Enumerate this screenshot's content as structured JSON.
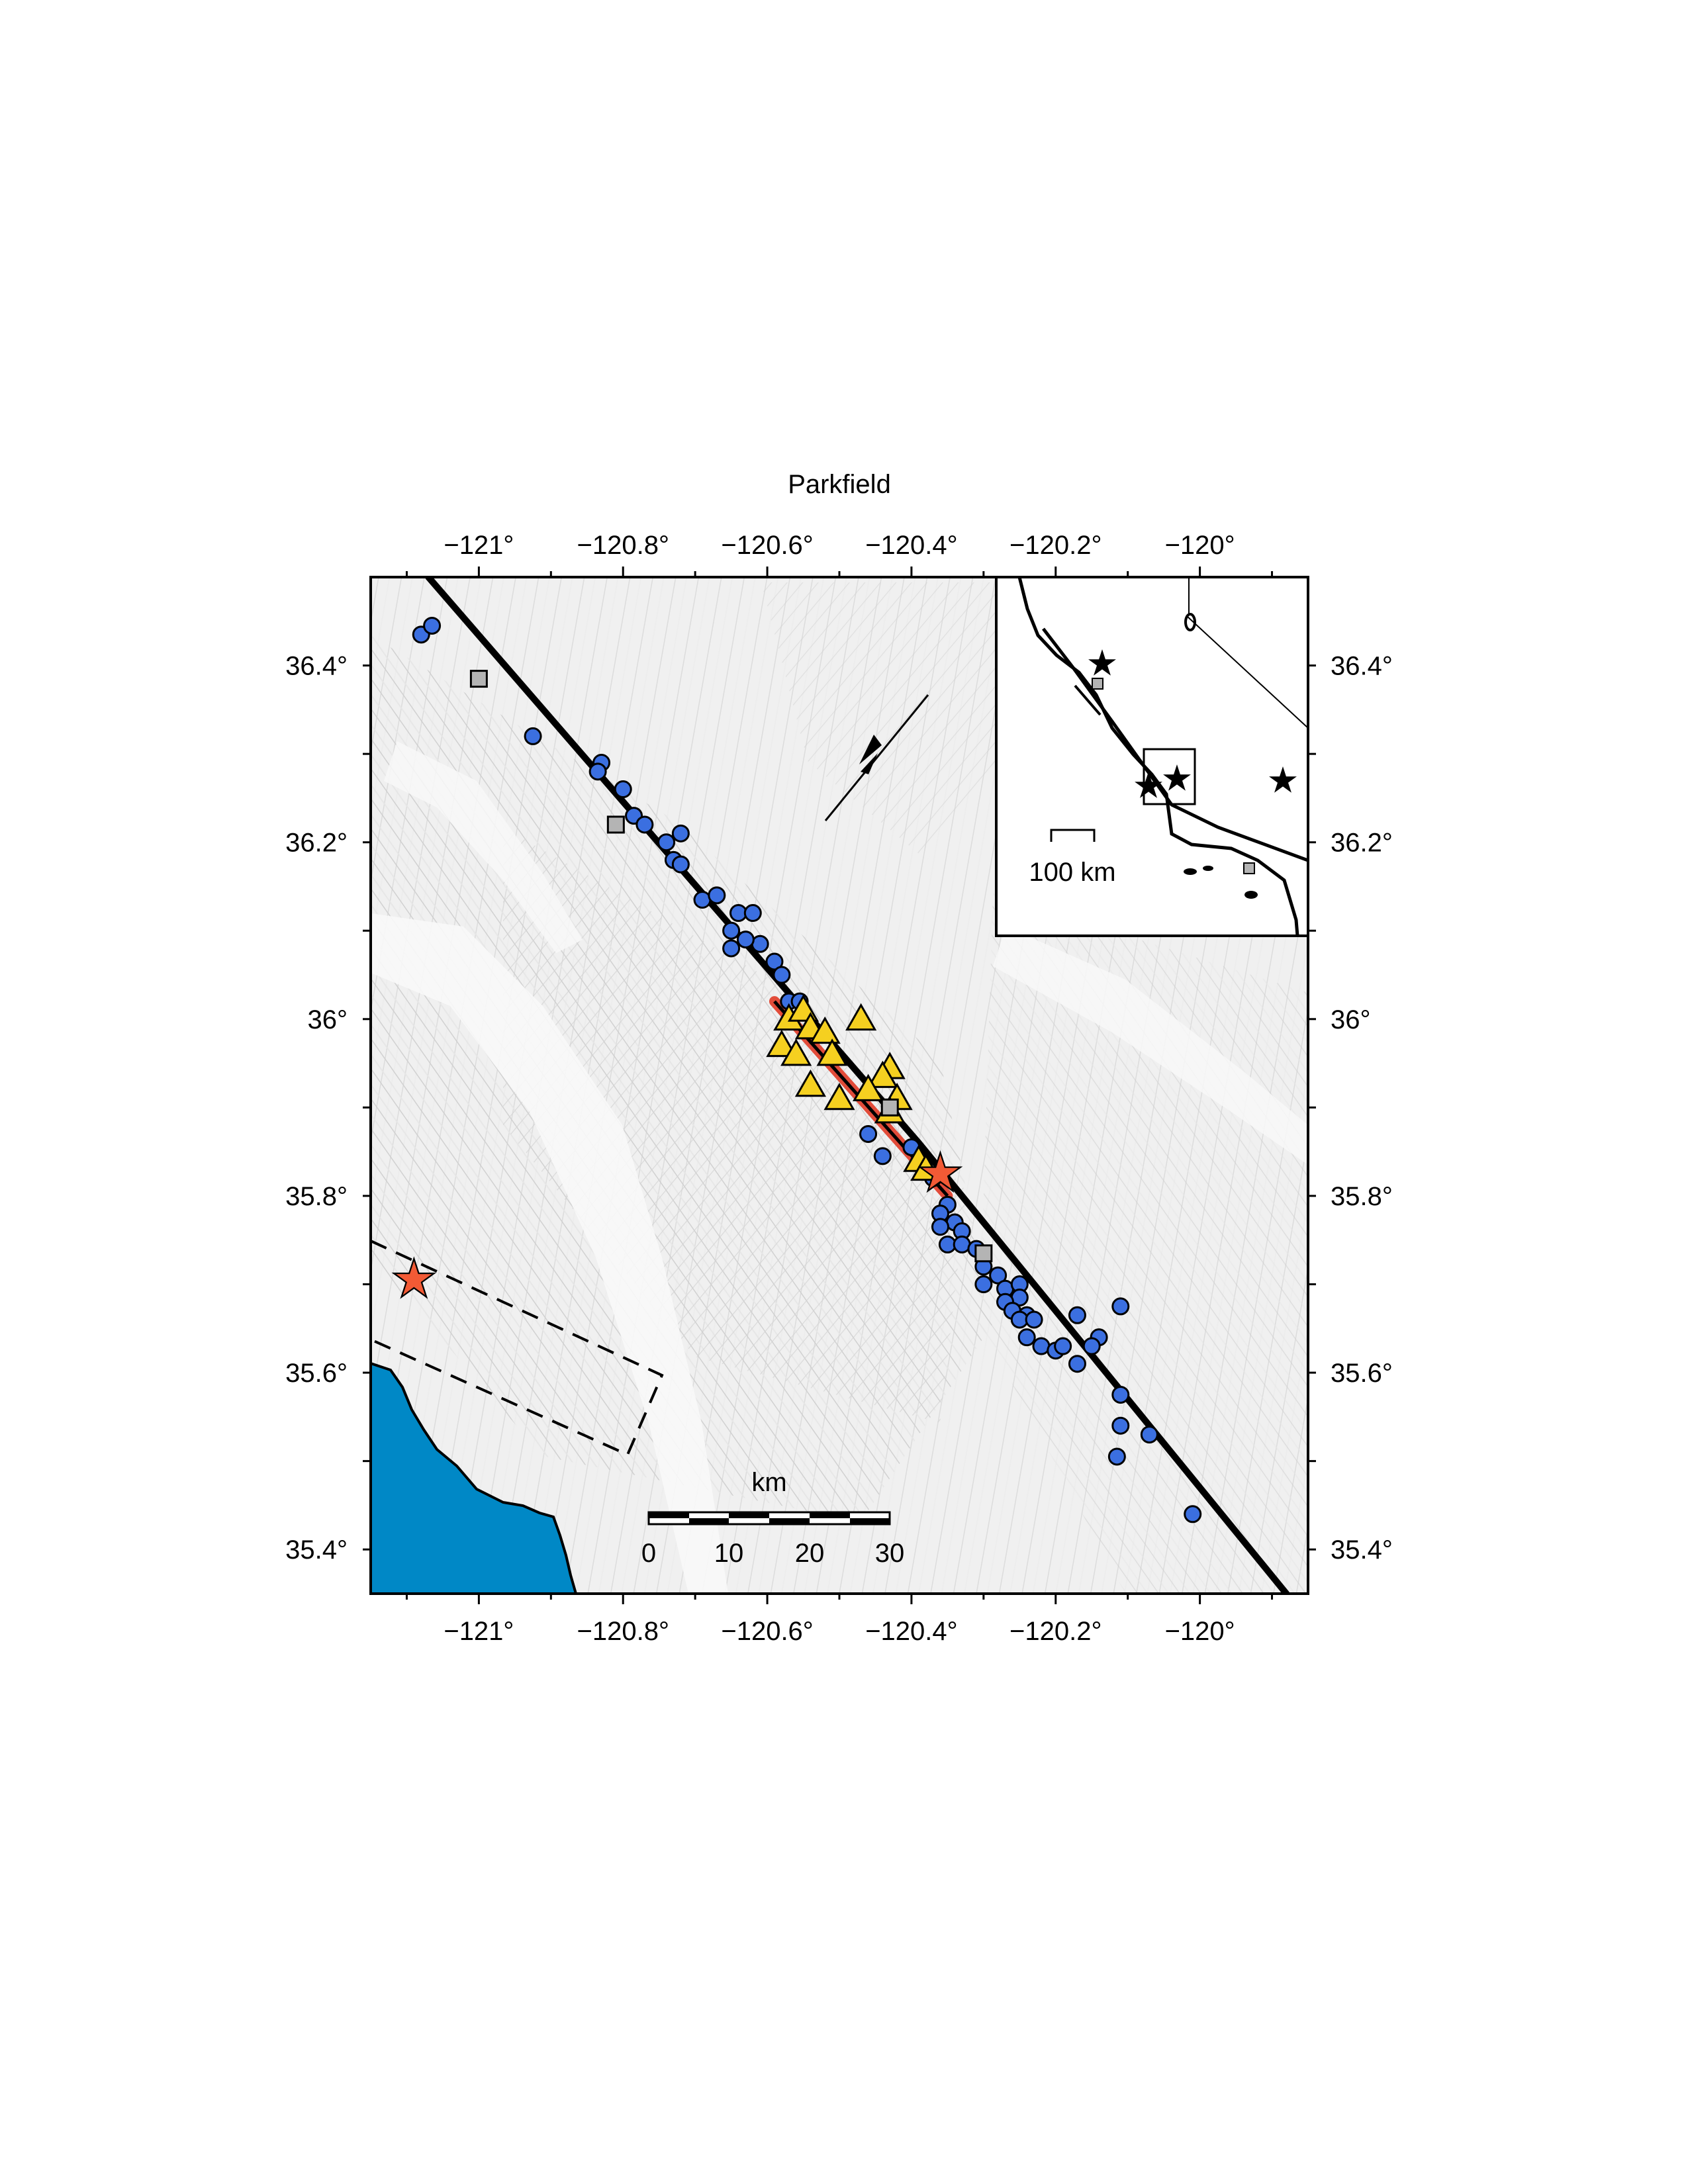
{
  "title": "Parkfield",
  "axes": {
    "x_ticks": [
      {
        "lon": -121.0,
        "label": "−121°"
      },
      {
        "lon": -120.8,
        "label": "−120.8°"
      },
      {
        "lon": -120.6,
        "label": "−120.6°"
      },
      {
        "lon": -120.4,
        "label": "−120.4°"
      },
      {
        "lon": -120.2,
        "label": "−120.2°"
      },
      {
        "lon": -120.0,
        "label": "−120°"
      }
    ],
    "y_ticks": [
      {
        "lat": 36.4,
        "label": "36.4°"
      },
      {
        "lat": 36.2,
        "label": "36.2°"
      },
      {
        "lat": 36.0,
        "label": "36°"
      },
      {
        "lat": 35.8,
        "label": "35.8°"
      },
      {
        "lat": 35.6,
        "label": "35.6°"
      },
      {
        "lat": 35.4,
        "label": "35.4°"
      }
    ],
    "lon_range": [
      -121.15,
      -119.85
    ],
    "lat_range": [
      35.35,
      36.5
    ]
  },
  "scale_bar": {
    "unit": "km",
    "ticks": [
      "0",
      "10",
      "20",
      "30"
    ]
  },
  "inset": {
    "scale_label": "100 km"
  },
  "colors": {
    "circle": "#3b6fe0",
    "triangle": "#f5d020",
    "star": "#f25a35",
    "square": "#b4b4b4",
    "ocean": "#0088c6",
    "rupture": "#e03a26",
    "fault": "#000000"
  },
  "map_features": {
    "fault_trace": [
      [
        -121.07,
        36.5
      ],
      [
        -120.39,
        35.86
      ],
      [
        -119.88,
        35.35
      ]
    ],
    "rupture_segment": [
      [
        -120.59,
        36.02
      ],
      [
        -120.35,
        35.8
      ]
    ],
    "stars": [
      [
        -121.09,
        35.705
      ],
      [
        -120.36,
        35.825
      ]
    ],
    "squares": [
      [
        -121.0,
        36.385
      ],
      [
        -120.81,
        36.22
      ],
      [
        -120.43,
        35.9
      ],
      [
        -120.3,
        35.735
      ]
    ],
    "triangles": [
      [
        -120.57,
        36.0
      ],
      [
        -120.55,
        36.01
      ],
      [
        -120.47,
        36.0
      ],
      [
        -120.54,
        35.99
      ],
      [
        -120.52,
        35.985
      ],
      [
        -120.58,
        35.97
      ],
      [
        -120.56,
        35.96
      ],
      [
        -120.51,
        35.96
      ],
      [
        -120.43,
        35.945
      ],
      [
        -120.44,
        35.935
      ],
      [
        -120.54,
        35.925
      ],
      [
        -120.46,
        35.92
      ],
      [
        -120.42,
        35.91
      ],
      [
        -120.5,
        35.91
      ],
      [
        -120.43,
        35.895
      ],
      [
        -120.39,
        35.84
      ],
      [
        -120.38,
        35.83
      ]
    ],
    "circles": [
      [
        -121.08,
        36.435
      ],
      [
        -121.065,
        36.445
      ],
      [
        -120.925,
        36.32
      ],
      [
        -120.83,
        36.29
      ],
      [
        -120.835,
        36.28
      ],
      [
        -120.8,
        36.26
      ],
      [
        -120.785,
        36.23
      ],
      [
        -120.77,
        36.22
      ],
      [
        -120.72,
        36.21
      ],
      [
        -120.74,
        36.2
      ],
      [
        -120.73,
        36.18
      ],
      [
        -120.72,
        36.175
      ],
      [
        -120.69,
        36.135
      ],
      [
        -120.67,
        36.14
      ],
      [
        -120.64,
        36.12
      ],
      [
        -120.62,
        36.12
      ],
      [
        -120.65,
        36.1
      ],
      [
        -120.61,
        36.085
      ],
      [
        -120.63,
        36.09
      ],
      [
        -120.65,
        36.08
      ],
      [
        -120.59,
        36.065
      ],
      [
        -120.58,
        36.05
      ],
      [
        -120.57,
        36.02
      ],
      [
        -120.555,
        36.02
      ],
      [
        -120.46,
        35.87
      ],
      [
        -120.4,
        35.855
      ],
      [
        -120.37,
        35.82
      ],
      [
        -120.35,
        35.79
      ],
      [
        -120.36,
        35.78
      ],
      [
        -120.34,
        35.77
      ],
      [
        -120.33,
        35.76
      ],
      [
        -120.36,
        35.765
      ],
      [
        -120.35,
        35.745
      ],
      [
        -120.33,
        35.745
      ],
      [
        -120.31,
        35.74
      ],
      [
        -120.3,
        35.72
      ],
      [
        -120.28,
        35.71
      ],
      [
        -120.3,
        35.7
      ],
      [
        -120.27,
        35.695
      ],
      [
        -120.25,
        35.7
      ],
      [
        -120.25,
        35.685
      ],
      [
        -120.27,
        35.68
      ],
      [
        -120.26,
        35.67
      ],
      [
        -120.24,
        35.665
      ],
      [
        -120.25,
        35.66
      ],
      [
        -120.23,
        35.66
      ],
      [
        -120.24,
        35.64
      ],
      [
        -120.22,
        35.63
      ],
      [
        -120.2,
        35.625
      ],
      [
        -120.19,
        35.63
      ],
      [
        -120.17,
        35.61
      ],
      [
        -120.17,
        35.665
      ],
      [
        -120.11,
        35.675
      ],
      [
        -120.14,
        35.64
      ],
      [
        -120.15,
        35.63
      ],
      [
        -120.11,
        35.575
      ],
      [
        -120.11,
        35.54
      ],
      [
        -120.07,
        35.53
      ],
      [
        -120.115,
        35.505
      ],
      [
        -120.01,
        35.44
      ],
      [
        -120.44,
        35.845
      ]
    ]
  }
}
